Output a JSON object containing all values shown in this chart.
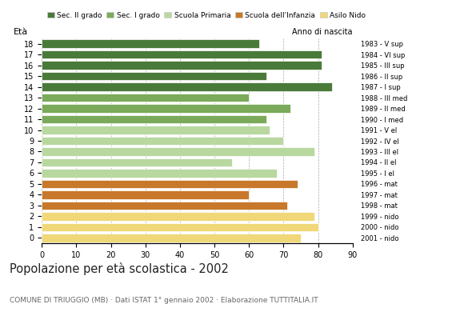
{
  "ages": [
    18,
    17,
    16,
    15,
    14,
    13,
    12,
    11,
    10,
    9,
    8,
    7,
    6,
    5,
    4,
    3,
    2,
    1,
    0
  ],
  "values": [
    63,
    81,
    81,
    65,
    84,
    60,
    72,
    65,
    66,
    70,
    79,
    55,
    68,
    74,
    60,
    71,
    79,
    80,
    75
  ],
  "anno_nascita": [
    "1983 - V sup",
    "1984 - VI sup",
    "1985 - III sup",
    "1986 - II sup",
    "1987 - I sup",
    "1988 - III med",
    "1989 - II med",
    "1990 - I med",
    "1991 - V el",
    "1992 - IV el",
    "1993 - III el",
    "1994 - II el",
    "1995 - I el",
    "1996 - mat",
    "1997 - mat",
    "1998 - mat",
    "1999 - nido",
    "2000 - nido",
    "2001 - nido"
  ],
  "bar_colors": [
    "#4a7a3a",
    "#4a7a3a",
    "#4a7a3a",
    "#4a7a3a",
    "#4a7a3a",
    "#7aaa5a",
    "#7aaa5a",
    "#7aaa5a",
    "#b8d8a0",
    "#b8d8a0",
    "#b8d8a0",
    "#b8d8a0",
    "#b8d8a0",
    "#c8782a",
    "#c8782a",
    "#c8782a",
    "#f0d878",
    "#f0d878",
    "#f0d878"
  ],
  "legend_labels": [
    "Sec. II grado",
    "Sec. I grado",
    "Scuola Primaria",
    "Scuola dell'Infanzia",
    "Asilo Nido"
  ],
  "legend_colors": [
    "#4a7a3a",
    "#7aaa5a",
    "#b8d8a0",
    "#c8782a",
    "#f0d878"
  ],
  "title": "Popolazione per età scolastica - 2002",
  "subtitle": "COMUNE DI TRIUGGIO (MB) · Dati ISTAT 1° gennaio 2002 · Elaborazione TUTTITALIA.IT",
  "ylabel_left": "Età",
  "ylabel_right": "Anno di nascita",
  "xlim": [
    0,
    90
  ],
  "xticks": [
    0,
    10,
    20,
    30,
    40,
    50,
    60,
    70,
    80,
    90
  ],
  "grid_color": "#aaaaaa",
  "bg_color": "#ffffff"
}
